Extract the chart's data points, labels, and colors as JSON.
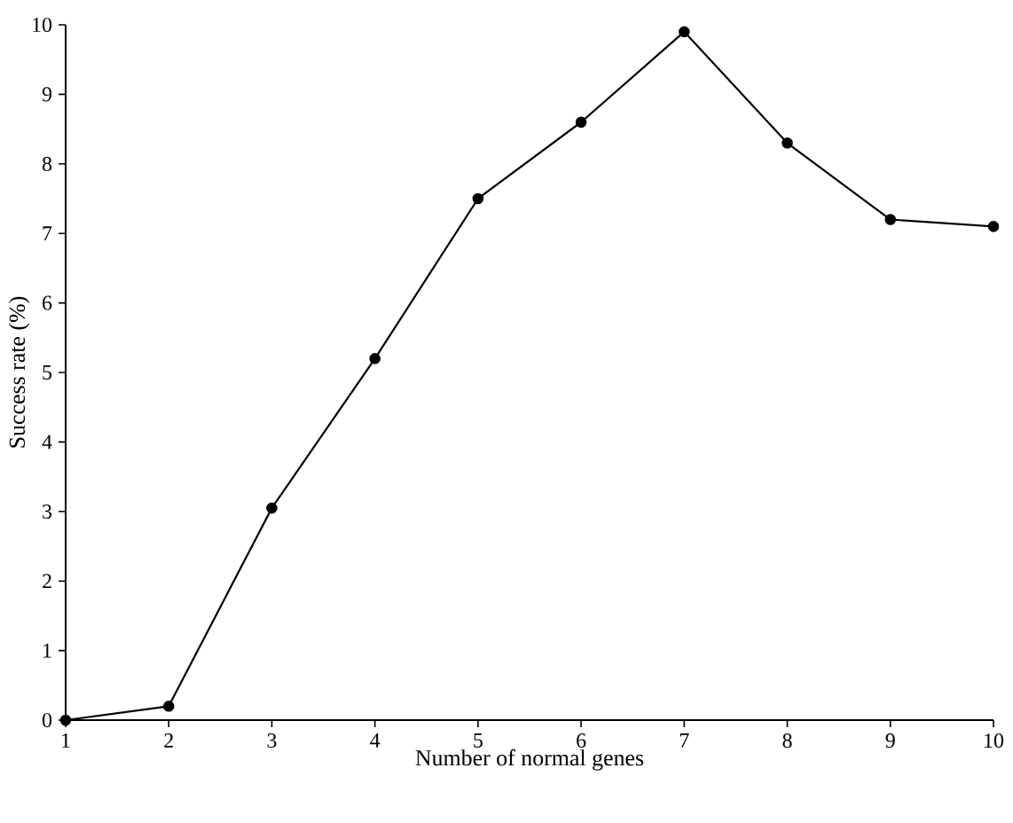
{
  "chart_data": {
    "type": "line",
    "xlabel": "Number of normal genes",
    "ylabel": "Success rate (%)",
    "x": [
      1,
      2,
      3,
      4,
      5,
      6,
      7,
      8,
      9,
      10
    ],
    "series": [
      {
        "color": "#000000",
        "values": [
          0,
          0.2,
          3.05,
          5.2,
          7.5,
          8.6,
          9.9,
          8.3,
          7.2,
          7.1
        ]
      }
    ],
    "xlim": [
      1,
      10
    ],
    "ylim": [
      0,
      10
    ],
    "xticks": [
      1,
      2,
      3,
      4,
      5,
      6,
      7,
      8,
      9,
      10
    ],
    "yticks": [
      0,
      1,
      2,
      3,
      4,
      5,
      6,
      7,
      8,
      9,
      10
    ],
    "marker": "circle",
    "line_style": "solid",
    "grid": false
  }
}
